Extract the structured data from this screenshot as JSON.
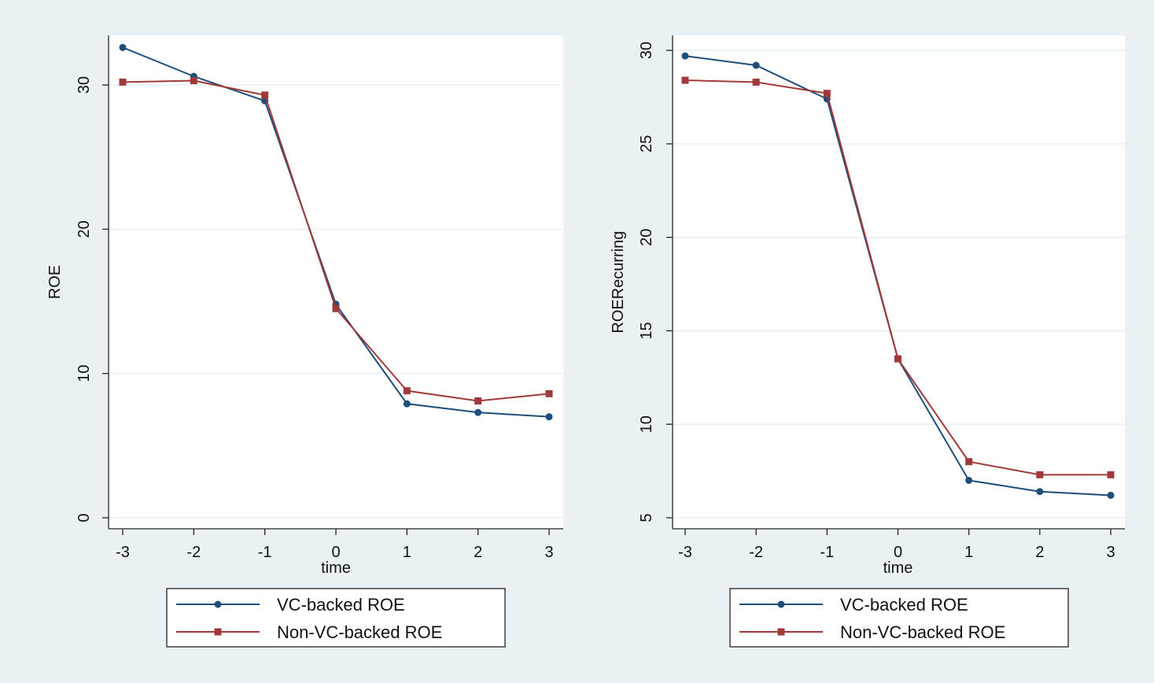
{
  "colors": {
    "outer_background": "#eaf1f4",
    "plot_background": "#ffffff",
    "gridline": "#e4ecef",
    "series_vc": "#1f4e79",
    "series_nonvc": "#a03a3a"
  },
  "chart_data": [
    {
      "type": "line",
      "title": "",
      "xlabel": "time",
      "ylabel": "ROE",
      "x": [
        -3,
        -2,
        -1,
        0,
        1,
        2,
        3
      ],
      "xticks": [
        "-3",
        "-2",
        "-1",
        "0",
        "1",
        "2",
        "3"
      ],
      "yticks": [
        "0",
        "10",
        "20",
        "30"
      ],
      "xlim": [
        -3,
        3
      ],
      "ylim": [
        0,
        33
      ],
      "grid": true,
      "legend_position": "bottom",
      "series": [
        {
          "name": "VC-backed ROE",
          "color": "#1f4e79",
          "values": [
            32.6,
            30.6,
            28.9,
            14.8,
            7.9,
            7.3,
            7.0
          ]
        },
        {
          "name": "Non-VC-backed ROE",
          "color": "#a03a3a",
          "values": [
            30.2,
            30.3,
            29.3,
            14.5,
            8.8,
            8.1,
            8.6
          ]
        }
      ]
    },
    {
      "type": "line",
      "title": "",
      "xlabel": "time",
      "ylabel": "ROERecurring",
      "x": [
        -3,
        -2,
        -1,
        0,
        1,
        2,
        3
      ],
      "xticks": [
        "-3",
        "-2",
        "-1",
        "0",
        "1",
        "2",
        "3"
      ],
      "yticks": [
        "5",
        "10",
        "15",
        "20",
        "25",
        "30"
      ],
      "xlim": [
        -3,
        3
      ],
      "ylim": [
        5,
        30
      ],
      "grid": true,
      "legend_position": "bottom",
      "series": [
        {
          "name": "VC-backed ROE",
          "color": "#1f4e79",
          "values": [
            29.7,
            29.2,
            27.4,
            13.5,
            7.0,
            6.4,
            6.2
          ]
        },
        {
          "name": "Non-VC-backed ROE",
          "color": "#a03a3a",
          "values": [
            28.4,
            28.3,
            27.7,
            13.5,
            8.0,
            7.3,
            7.3
          ]
        }
      ]
    }
  ]
}
